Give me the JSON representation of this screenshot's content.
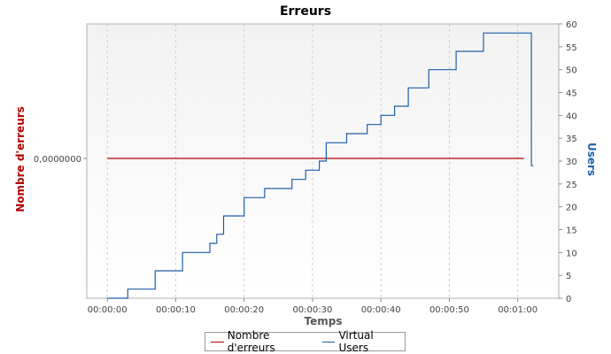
{
  "chart_data": {
    "type": "line",
    "title": "Erreurs",
    "xlabel": "Temps",
    "ylabel_left": "Nombre d'erreurs",
    "ylabel_right": "Users",
    "x_tick_labels": [
      "00:00:00",
      "00:00:10",
      "00:00:20",
      "00:00:30",
      "00:00:40",
      "00:00:50",
      "00:01:00"
    ],
    "x_ticks_seconds": [
      0,
      10,
      20,
      30,
      40,
      50,
      60
    ],
    "xlim_seconds": [
      -3,
      66
    ],
    "left_axis": {
      "tick_labels": [
        "0,0000000"
      ],
      "tick_values": [
        0
      ]
    },
    "right_axis": {
      "ticks": [
        0,
        5,
        10,
        15,
        20,
        25,
        30,
        35,
        40,
        45,
        50,
        55,
        60
      ],
      "ylim": [
        0,
        60
      ]
    },
    "grid": true,
    "legend_position": "bottom",
    "series": [
      {
        "name": "Nombre d'erreurs",
        "axis": "left",
        "color": "#b00000",
        "x": [
          0,
          60.9
        ],
        "y": [
          0,
          0
        ]
      },
      {
        "name": "Virtual Users",
        "axis": "right",
        "color": "#1f5fa8",
        "step": true,
        "x": [
          0,
          3,
          7,
          11,
          15,
          16,
          17,
          20,
          23,
          27,
          28,
          29,
          31,
          32,
          35,
          38,
          40,
          42,
          43,
          44,
          47,
          51,
          55,
          59,
          62,
          62.3
        ],
        "y": [
          0,
          2,
          6,
          10,
          12,
          14,
          18,
          22,
          24,
          26,
          26,
          28,
          30,
          34,
          36,
          38,
          40,
          42,
          42,
          46,
          50,
          54,
          58,
          58,
          29,
          29
        ]
      }
    ]
  },
  "legend": {
    "errors_label": "Nombre d'erreurs",
    "users_label": "Virtual Users"
  },
  "colors": {
    "errors": "#b00000",
    "users": "#1f5fa8",
    "plot_bg_top": "#f4f4f4",
    "plot_bg_bottom": "#ffffff",
    "grid": "#d0d0d0"
  }
}
